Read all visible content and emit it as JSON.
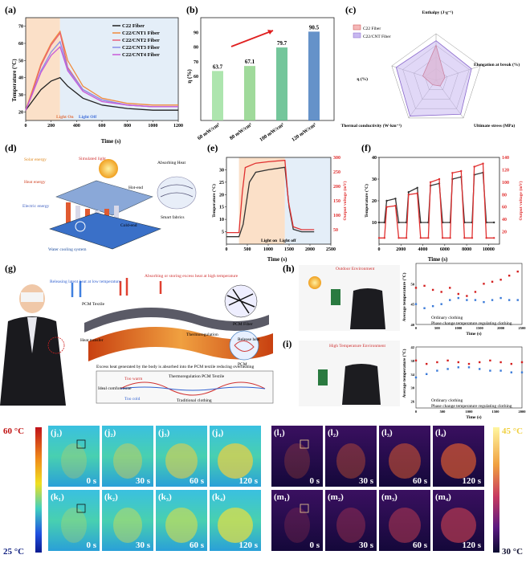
{
  "panels": {
    "a": {
      "label": "(a)",
      "ylabel": "Temperature (°C)",
      "xlabel": "Time (s)",
      "light_on": "Light On",
      "light_off": "Light Off"
    },
    "b": {
      "label": "(b)",
      "ylabel": "η (%)"
    },
    "c": {
      "label": "(c)",
      "legend": [
        "C22 Fiber",
        "C22/CNT Fiber"
      ],
      "axes": [
        "Enthalpy (J·g⁻¹)",
        "Elongation at break (%)",
        "Ultimate stress (MPa)",
        "Thermal conductivity (W·km⁻¹)",
        "η (%)"
      ]
    },
    "d": {
      "label": "(d)",
      "texts": [
        "Solar energy",
        "Heat energy",
        "Electric energy",
        "Simulated light",
        "Absorbing Heat",
        "Hot-end",
        "Cold-end",
        "Smart fabrics",
        "Water cooling system"
      ]
    },
    "e": {
      "label": "(e)",
      "ylabel": "Temperature (°C)",
      "y2label": "Output voltage (mV)",
      "xlabel": "Time (s)",
      "light_on": "Light on",
      "light_off": "Light off"
    },
    "f": {
      "label": "(f)",
      "ylabel": "Temperature (°C)",
      "y2label": "Output voltage (mV)",
      "xlabel": "Time (s)"
    },
    "g": {
      "label": "(g)",
      "texts": [
        "Absorbing or storing excess heat at high temperature",
        "Releasing latent heat at low temperature",
        "PCM Textile",
        "Heat transfer",
        "Thermoregulation",
        "PCM Fiber",
        "Release heat",
        "PCM",
        "Excess heat generated by the body is absorbed into the PCM textile reducing overheating",
        "Thermoregulation PCM Textile",
        "Traditional clothing",
        "Too warm",
        "Too cold",
        "Ideal comfort zone"
      ]
    },
    "h": {
      "label": "(h)",
      "env": "Outdoor Environment",
      "ylabel": "Average temperature (°C)",
      "xlabel": "Time (s)",
      "legend": [
        "Ordinary clothing",
        "Phase change temperature regulating clothing"
      ]
    },
    "i": {
      "label": "(i)",
      "env": "High Temperature Environment",
      "ylabel": "Average temperature (°C)",
      "xlabel": "Time (s)",
      "legend": [
        "Ordinary clothing",
        "Phase change temperature regulating clothing"
      ]
    }
  },
  "colorbars": {
    "left": {
      "max": "60 °C",
      "min": "25 °C"
    },
    "right": {
      "max": "45 °C",
      "min": "30 °C"
    }
  },
  "thermal": {
    "j": [
      "(j₁)",
      "(j₂)",
      "(j₃)",
      "(j₄)"
    ],
    "k": [
      "(k₁)",
      "(k₂)",
      "(k₃)",
      "(k₄)"
    ],
    "l": [
      "(l₁)",
      "(l₂)",
      "(l₃)",
      "(l₄)"
    ],
    "m": [
      "(m₁)",
      "(m₂)",
      "(m₃)",
      "(m₄)"
    ],
    "times": [
      "0 s",
      "30 s",
      "60 s",
      "120 s"
    ]
  },
  "chart_data": [
    {
      "id": "a",
      "type": "line",
      "title": "",
      "xlabel": "Time (s)",
      "ylabel": "Temperature (°C)",
      "xlim": [
        0,
        1200
      ],
      "ylim": [
        15,
        75
      ],
      "xticks": [
        0,
        200,
        400,
        600,
        800,
        1000,
        1200
      ],
      "yticks": [
        20,
        30,
        40,
        50,
        60,
        70
      ],
      "light_on_range": [
        0,
        270
      ],
      "series": [
        {
          "name": "C22 Fiber",
          "color": "#222222",
          "x": [
            0,
            50,
            120,
            200,
            270,
            330,
            450,
            600,
            800,
            1000,
            1200
          ],
          "y": [
            21,
            26,
            33,
            38,
            40,
            35,
            28,
            24,
            22,
            21,
            21
          ]
        },
        {
          "name": "C22/CNT1 Fiber",
          "color": "#f08a3c",
          "x": [
            0,
            50,
            120,
            200,
            270,
            330,
            450,
            600,
            800,
            1000,
            1200
          ],
          "y": [
            21,
            32,
            48,
            60,
            67,
            50,
            35,
            28,
            25,
            24,
            24
          ]
        },
        {
          "name": "C22/CNT2 Fiber",
          "color": "#e8607a",
          "x": [
            0,
            50,
            120,
            200,
            270,
            330,
            450,
            600,
            800,
            1000,
            1200
          ],
          "y": [
            21,
            31,
            47,
            59,
            66,
            46,
            33,
            27,
            24,
            23,
            23
          ]
        },
        {
          "name": "C22/CNT3 Fiber",
          "color": "#8a8ee8",
          "x": [
            0,
            50,
            120,
            200,
            270,
            330,
            450,
            600,
            800,
            1000,
            1200
          ],
          "y": [
            21,
            30,
            44,
            55,
            61,
            45,
            33,
            27,
            24,
            23,
            23
          ]
        },
        {
          "name": "C22/CNT4 Fiber",
          "color": "#c85ad8",
          "x": [
            0,
            50,
            120,
            200,
            270,
            330,
            450,
            600,
            800,
            1000,
            1200
          ],
          "y": [
            21,
            30,
            43,
            53,
            58,
            44,
            32,
            26,
            24,
            23,
            23
          ]
        }
      ]
    },
    {
      "id": "b",
      "type": "bar",
      "ylabel": "η (%)",
      "categories": [
        "60 mW/cm²",
        "80 mW/cm²",
        "100 mW/cm²",
        "120 mW/cm²"
      ],
      "values": [
        63.7,
        67.1,
        79.7,
        90.5
      ],
      "value_labels": [
        "63.7",
        "67.1",
        "79.7",
        "90.5"
      ],
      "colors": [
        "#9fe0a0",
        "#8fd48a",
        "#5cbc8a",
        "#4a7fc0"
      ],
      "ylim": [
        0,
        100
      ],
      "yticks": [
        60,
        70,
        80,
        90
      ]
    },
    {
      "id": "c",
      "type": "radar",
      "axes": [
        "Enthalpy",
        "Elongation at break",
        "Ultimate stress",
        "Thermal conductivity",
        "η"
      ],
      "series": [
        {
          "name": "C22 Fiber",
          "values": [
            0.75,
            0.2,
            0.15,
            0.12,
            0.3
          ]
        },
        {
          "name": "C22/CNT Fiber",
          "values": [
            0.85,
            0.8,
            0.9,
            0.95,
            0.9
          ]
        }
      ]
    },
    {
      "id": "e",
      "type": "line",
      "xlabel": "Time (s)",
      "ylabel": "Temperature (°C)",
      "y2label": "Output voltage (mV)",
      "xlim": [
        0,
        2500
      ],
      "ylim": [
        0,
        35
      ],
      "y2lim": [
        0,
        300
      ],
      "xticks": [
        0,
        500,
        1000,
        1500,
        2000,
        2500
      ],
      "yticks": [
        5,
        10,
        15,
        20,
        25,
        30
      ],
      "y2ticks": [
        50,
        100,
        150,
        200,
        250,
        300
      ],
      "series": [
        {
          "name": "Temperature",
          "color": "#333333",
          "x": [
            0,
            300,
            400,
            550,
            700,
            1000,
            1400,
            1500,
            1600,
            1800,
            2100
          ],
          "y": [
            3,
            3,
            8,
            25,
            29,
            30,
            31,
            15,
            6,
            5,
            5
          ]
        },
        {
          "name": "Output voltage",
          "axis": "y2",
          "color": "#e03030",
          "x": [
            0,
            300,
            380,
            450,
            700,
            1000,
            1400,
            1480,
            1600,
            1800,
            2100
          ],
          "y": [
            40,
            40,
            180,
            265,
            280,
            285,
            290,
            150,
            60,
            50,
            50
          ]
        }
      ]
    },
    {
      "id": "f",
      "type": "line",
      "xlabel": "Time (s)",
      "ylabel": "Temperature (°C)",
      "y2label": "Output voltage (mV)",
      "xlim": [
        0,
        11000
      ],
      "ylim": [
        0,
        40
      ],
      "y2lim": [
        0,
        140
      ],
      "xticks": [
        0,
        2000,
        4000,
        6000,
        8000,
        10000
      ],
      "yticks": [
        10,
        20,
        30,
        40
      ],
      "y2ticks": [
        20,
        40,
        60,
        80,
        100,
        120,
        140
      ],
      "series": [
        {
          "name": "Temperature",
          "color": "#333333",
          "x": [
            0,
            500,
            700,
            1500,
            1800,
            2500,
            2700,
            3500,
            3800,
            4500,
            4700,
            5500,
            5800,
            6500,
            6700,
            7500,
            7800,
            8500,
            8700,
            9500,
            9800,
            10500
          ],
          "y": [
            10,
            10,
            20,
            21,
            10,
            10,
            24,
            26,
            10,
            10,
            27,
            28,
            10,
            10,
            30,
            31,
            10,
            10,
            32,
            33,
            10,
            10
          ]
        },
        {
          "name": "Output voltage",
          "axis": "y2",
          "color": "#e03030",
          "x": [
            0,
            500,
            700,
            1500,
            1800,
            2500,
            2700,
            3500,
            3800,
            4500,
            4700,
            5500,
            5800,
            6500,
            6700,
            7500,
            7800,
            8500,
            8700,
            9500,
            9800,
            10500
          ],
          "y": [
            10,
            10,
            60,
            62,
            10,
            10,
            80,
            82,
            10,
            10,
            100,
            105,
            10,
            10,
            115,
            118,
            10,
            10,
            125,
            130,
            10,
            10
          ]
        }
      ]
    },
    {
      "id": "h",
      "type": "scatter",
      "xlabel": "Time (s)",
      "ylabel": "Average temperature (°C)",
      "xlim": [
        0,
        2500
      ],
      "ylim": [
        40,
        55
      ],
      "xticks": [
        0,
        500,
        1000,
        1500,
        2000,
        2500
      ],
      "yticks": [
        40,
        45,
        50
      ],
      "series": [
        {
          "name": "Ordinary clothing",
          "color": "#d42020",
          "x": [
            0,
            200,
            400,
            600,
            800,
            1000,
            1200,
            1400,
            1600,
            1800,
            2000,
            2200,
            2400
          ],
          "y": [
            49,
            49.5,
            48.5,
            48,
            49,
            47.5,
            47,
            48,
            50,
            50.5,
            51,
            52,
            53
          ]
        },
        {
          "name": "Phase change temperature regulating clothing",
          "color": "#3a7ad8",
          "x": [
            0,
            200,
            400,
            600,
            800,
            1000,
            1200,
            1400,
            1600,
            1800,
            2000,
            2200,
            2400
          ],
          "y": [
            45,
            44,
            44.5,
            45,
            46,
            46.5,
            46,
            46,
            45.5,
            46,
            46.5,
            46,
            46
          ]
        }
      ]
    },
    {
      "id": "i",
      "type": "scatter",
      "xlabel": "Time (s)",
      "ylabel": "Average temperature (°C)",
      "xlim": [
        0,
        2000
      ],
      "ylim": [
        24,
        42
      ],
      "xticks": [
        0,
        500,
        1000,
        1500,
        2000
      ],
      "yticks": [
        26,
        30,
        34,
        38,
        42
      ],
      "series": [
        {
          "name": "Ordinary clothing",
          "color": "#d42020",
          "x": [
            0,
            200,
            400,
            600,
            800,
            1000,
            1200,
            1400,
            1600,
            1800,
            2000
          ],
          "y": [
            38,
            37,
            37.5,
            38,
            37.5,
            37,
            37.5,
            38,
            37.5,
            37,
            37.5
          ]
        },
        {
          "name": "Phase change temperature regulating clothing",
          "color": "#3a7ad8",
          "x": [
            0,
            200,
            400,
            600,
            800,
            1000,
            1200,
            1400,
            1600,
            1800,
            2000
          ],
          "y": [
            33,
            34,
            35,
            35.5,
            36,
            36,
            35.5,
            35,
            35,
            34.5,
            34.5
          ]
        }
      ]
    }
  ]
}
